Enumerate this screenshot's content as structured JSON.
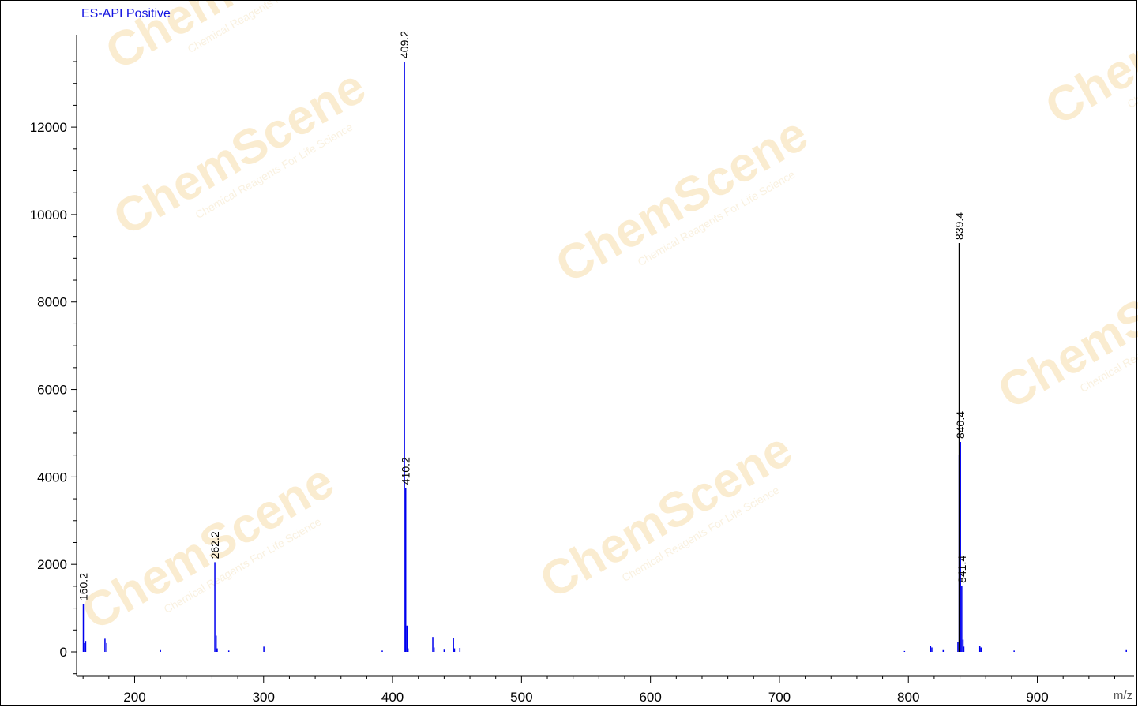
{
  "chart_data": {
    "type": "bar",
    "title": "ES-API Positive",
    "xlabel": "m/z",
    "ylabel": "",
    "xlim": [
      155,
      975
    ],
    "ylim": [
      -600,
      14000
    ],
    "xticks": [
      200,
      300,
      400,
      500,
      600,
      700,
      800,
      900
    ],
    "yticks": [
      0,
      2000,
      4000,
      6000,
      8000,
      10000,
      12000
    ],
    "grid": false,
    "series": [
      {
        "color": "#0000ee",
        "x": [
          160.2,
          161.2,
          162.0,
          177.0,
          178.4,
          220.0,
          262.2,
          263.2,
          264.0,
          273.0,
          300.2,
          392.0,
          409.2,
          410.2,
          411.2,
          412.0,
          431.2,
          432.2,
          440.0,
          447.2,
          448.0,
          452.2,
          797.0,
          817.2,
          818.2,
          827.0,
          838.4,
          839.4,
          840.4,
          841.4,
          842.4,
          843.0,
          855.4,
          856.4,
          882.0,
          969.0
        ],
        "values": [
          1100,
          200,
          250,
          300,
          200,
          40,
          2050,
          370,
          80,
          30,
          120,
          30,
          13500,
          3750,
          600,
          80,
          340,
          100,
          50,
          310,
          80,
          90,
          20,
          140,
          100,
          40,
          220,
          4500,
          4800,
          1500,
          280,
          120,
          140,
          100,
          30,
          40
        ]
      },
      {
        "color": "#000000",
        "x": [
          839.4
        ],
        "values": [
          9350
        ]
      }
    ],
    "peak_labels": [
      {
        "x": 160.2,
        "y": 1100,
        "text": "160.2"
      },
      {
        "x": 262.2,
        "y": 2050,
        "text": "262.2"
      },
      {
        "x": 409.2,
        "y": 13500,
        "text": "409.2"
      },
      {
        "x": 410.2,
        "y": 3750,
        "text": "410.2"
      },
      {
        "x": 839.4,
        "y": 9350,
        "text": "839.4"
      },
      {
        "x": 840.4,
        "y": 4800,
        "text": "840.4"
      },
      {
        "x": 841.4,
        "y": 1500,
        "text": "841.4"
      }
    ]
  },
  "watermark": {
    "brand_a": "Chem",
    "brand_b": "Scene",
    "tagline": "Chemical Reagents For Life Science",
    "color": "#f3c97a"
  }
}
